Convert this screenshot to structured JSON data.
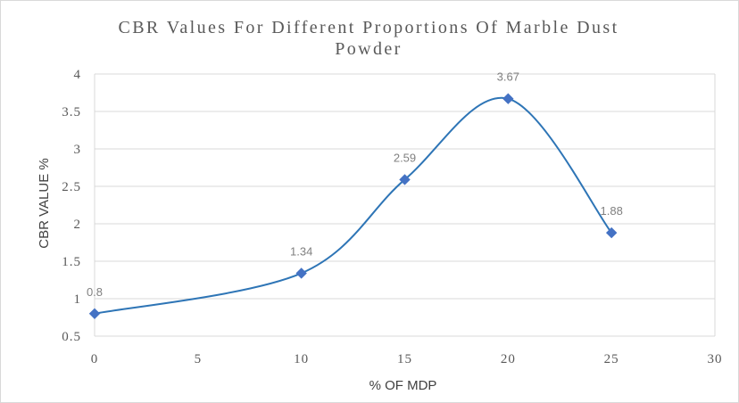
{
  "chart_data": {
    "type": "scatter",
    "title_lines": [
      "CBR Values For Different Proportions Of Marble Dust",
      "Powder"
    ],
    "xlabel": "% OF MDP",
    "ylabel": "CBR VALUE %",
    "xlim": [
      0,
      30
    ],
    "ylim": [
      0.5,
      4
    ],
    "x_ticks": [
      0,
      5,
      10,
      15,
      20,
      25,
      30
    ],
    "y_ticks": [
      0.5,
      1,
      1.5,
      2,
      2.5,
      3,
      3.5,
      4
    ],
    "x_tick_labels": [
      "0",
      "5",
      "10",
      "15",
      "20",
      "25",
      "30"
    ],
    "y_tick_labels": [
      "0.5",
      "1",
      "1.5",
      "2",
      "2.5",
      "3",
      "3.5",
      "4"
    ],
    "grid": true,
    "smooth_line": true,
    "marker": "diamond",
    "series": [
      {
        "x": [
          0,
          10,
          15,
          20,
          25
        ],
        "y": [
          0.8,
          1.34,
          2.59,
          3.67,
          1.88
        ],
        "data_labels": [
          "0.8",
          "1.34",
          "2.59",
          "3.67",
          "1.88"
        ]
      }
    ],
    "colors": {
      "series": "#2e75b6",
      "marker": "#4472c4",
      "grid": "#d9d9d9"
    }
  }
}
